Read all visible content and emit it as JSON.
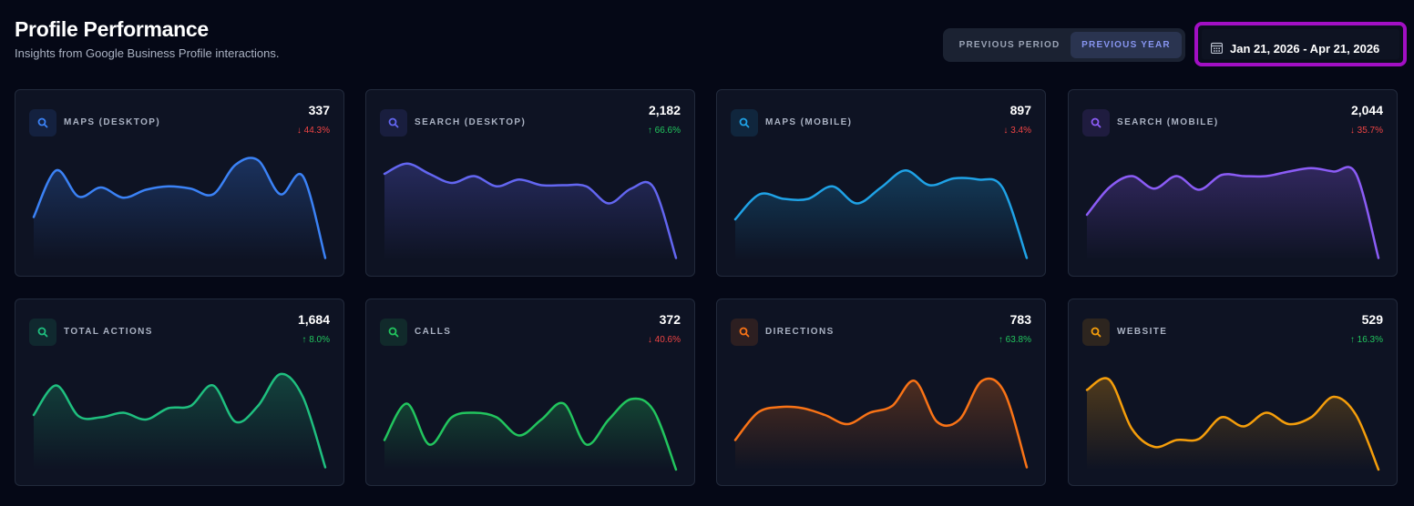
{
  "header": {
    "title": "Profile Performance",
    "subtitle": "Insights from Google Business Profile interactions."
  },
  "controls": {
    "options": [
      "PREVIOUS PERIOD",
      "PREVIOUS YEAR"
    ],
    "active": 1,
    "date_range": "Jan 21, 2026 - Apr 21, 2026"
  },
  "cards": [
    {
      "label": "MAPS (DESKTOP)",
      "value": "337",
      "change": "↓ 44.3%",
      "trend_direction": "down",
      "color": "#3b82f6",
      "trend": [
        38,
        79,
        56,
        64,
        55,
        62,
        65,
        63,
        58,
        84,
        88,
        58,
        74,
        2
      ]
    },
    {
      "label": "SEARCH (DESKTOP)",
      "value": "2,182",
      "change": "↑ 66.6%",
      "trend_direction": "up",
      "color": "#6366f1",
      "trend": [
        76,
        85,
        76,
        68,
        74,
        65,
        71,
        66,
        66,
        65,
        50,
        63,
        64,
        2
      ]
    },
    {
      "label": "MAPS (MOBILE)",
      "value": "897",
      "change": "↓ 3.4%",
      "trend_direction": "down",
      "color": "#1fa2e6",
      "trend": [
        36,
        58,
        54,
        54,
        65,
        50,
        64,
        79,
        66,
        72,
        71,
        64,
        2
      ]
    },
    {
      "label": "SEARCH (MOBILE)",
      "value": "2,044",
      "change": "↓ 35.7%",
      "trend_direction": "down",
      "color": "#8b5cf6",
      "trend": [
        40,
        64,
        74,
        63,
        74,
        62,
        75,
        74,
        74,
        78,
        81,
        78,
        76,
        2
      ]
    },
    {
      "label": "TOTAL ACTIONS",
      "value": "1,684",
      "change": "↑ 8.0%",
      "trend_direction": "up",
      "color": "#1fbf7f",
      "trend": [
        48,
        74,
        47,
        46,
        50,
        44,
        54,
        56,
        74,
        42,
        56,
        84,
        64,
        2
      ]
    },
    {
      "label": "CALLS",
      "value": "372",
      "change": "↓ 40.6%",
      "trend_direction": "down",
      "color": "#22c55e",
      "trend": [
        26,
        58,
        22,
        46,
        50,
        46,
        30,
        44,
        58,
        22,
        44,
        62,
        52,
        0
      ]
    },
    {
      "label": "DIRECTIONS",
      "value": "783",
      "change": "↑ 63.8%",
      "trend_direction": "up",
      "color": "#f97316",
      "trend": [
        26,
        50,
        55,
        54,
        48,
        40,
        50,
        56,
        78,
        42,
        44,
        78,
        68,
        2
      ]
    },
    {
      "label": "WEBSITE",
      "value": "529",
      "change": "↑ 16.3%",
      "trend_direction": "up",
      "color": "#f59e0b",
      "trend": [
        70,
        79,
        36,
        20,
        26,
        27,
        46,
        38,
        50,
        40,
        46,
        64,
        48,
        0
      ]
    }
  ]
}
